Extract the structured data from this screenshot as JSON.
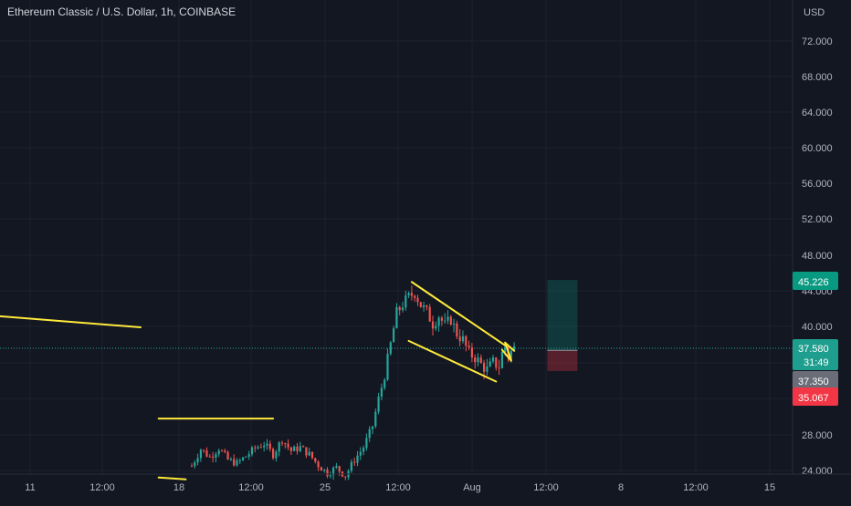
{
  "header": {
    "symbol_title": "Ethereum Classic / U.S. Dollar, 1h, COINBASE",
    "currency": "USD"
  },
  "colors": {
    "background": "#131722",
    "grid": "#1e222d",
    "axis_text": "#b2b5be",
    "candle_up": "#26a69a",
    "candle_down": "#ef5350",
    "drawing": "#ffeb3b",
    "target_badge": "#089981",
    "last_price_badge": "#1e9e8e",
    "stop_badge": "#f23645",
    "entry_badge": "#6a6d78"
  },
  "chart_data": {
    "type": "candlestick",
    "x_ticks": [
      "11",
      "12:00",
      "18",
      "12:00",
      "25",
      "12:00",
      "Aug",
      "12:00",
      "8",
      "12:00",
      "15"
    ],
    "y_ticks": [
      "72.000",
      "68.000",
      "64.000",
      "60.000",
      "56.000",
      "52.000",
      "48.000",
      "44.000",
      "40.000",
      "28.000",
      "24.000"
    ],
    "price_markers": {
      "target": "45.226",
      "last_price": "37.580",
      "countdown": "31:49",
      "entry": "37.350",
      "stop": "35.067"
    },
    "price_path": [
      [
        0,
        24.5
      ],
      [
        3,
        26.4
      ],
      [
        6,
        25.5
      ],
      [
        9,
        26.5
      ],
      [
        12,
        25.2
      ],
      [
        15,
        24.8
      ],
      [
        18,
        25.6
      ],
      [
        21,
        26.5
      ],
      [
        24,
        27.0
      ],
      [
        27,
        25.8
      ],
      [
        30,
        27.5
      ],
      [
        33,
        26.2
      ],
      [
        36,
        26.6
      ],
      [
        39,
        25.8
      ],
      [
        42,
        24.6
      ],
      [
        45,
        23.7
      ],
      [
        48,
        24.3
      ],
      [
        51,
        23.4
      ],
      [
        54,
        25.2
      ],
      [
        57,
        26.6
      ],
      [
        60,
        29.0
      ],
      [
        62,
        32.0
      ],
      [
        64,
        34.5
      ],
      [
        66,
        38.0
      ],
      [
        68,
        41.5
      ],
      [
        70,
        42.5
      ],
      [
        72,
        43.3
      ],
      [
        74,
        43.8
      ],
      [
        76,
        42.4
      ],
      [
        78,
        41.6
      ],
      [
        80,
        40.3
      ],
      [
        82,
        41.2
      ],
      [
        84,
        40.1
      ],
      [
        86,
        40.8
      ],
      [
        88,
        39.2
      ],
      [
        90,
        38.5
      ],
      [
        92,
        37.0
      ],
      [
        94,
        36.6
      ],
      [
        96,
        35.8
      ],
      [
        98,
        35.2
      ],
      [
        100,
        36.0
      ],
      [
        102,
        35.6
      ],
      [
        103,
        37.0
      ],
      [
        104,
        37.8
      ],
      [
        105,
        36.8
      ],
      [
        106,
        37.2
      ],
      [
        107,
        37.58
      ]
    ],
    "drawn_lines": [
      {
        "from": [
          -66,
          41.2
        ],
        "to": [
          -17,
          39.9
        ]
      },
      {
        "from": [
          -11,
          29.8
        ],
        "to": [
          27,
          29.8
        ]
      },
      {
        "from": [
          -11,
          23.2
        ],
        "to": [
          -2,
          23.0
        ]
      },
      {
        "from": [
          73,
          45.0
        ],
        "to": [
          104,
          37.9
        ]
      },
      {
        "from": [
          72,
          38.4
        ],
        "to": [
          101,
          33.9
        ]
      },
      {
        "from": [
          104,
          38.2
        ],
        "to": [
          106,
          36.3
        ]
      },
      {
        "from": [
          103,
          37.4
        ],
        "to": [
          106,
          36.2
        ]
      },
      {
        "from": [
          104,
          38.2
        ],
        "to": [
          107,
          37.3
        ]
      }
    ],
    "position": {
      "entry": 37.35,
      "target": 45.226,
      "stop": 35.067,
      "x_start": 118,
      "x_end": 128
    },
    "grid": true
  }
}
